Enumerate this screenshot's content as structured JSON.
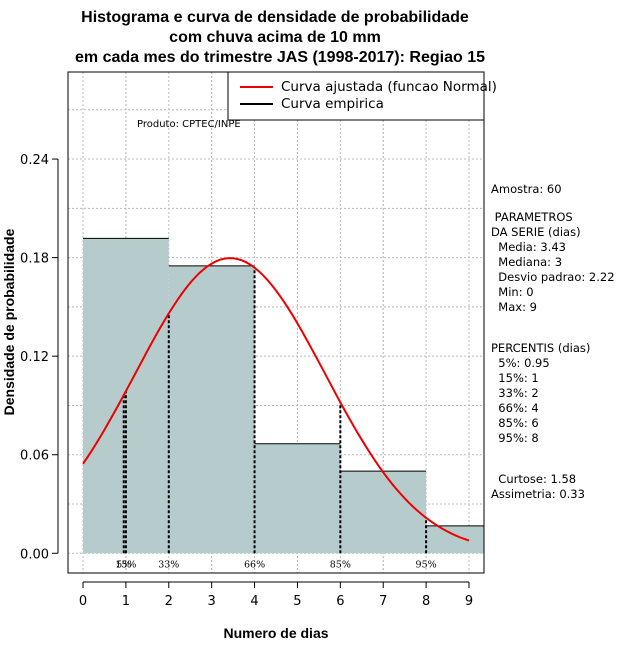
{
  "chart_data": {
    "type": "bar",
    "title": [
      "Histograma e curva de densidade de probabilidade",
      "com chuva acima de 10 mm",
      "em cada mes do trimestre JAS (1998-2017): Regiao 15"
    ],
    "xlabel": "Numero de dias",
    "ylabel": "Densidade de probabilidade",
    "xlim": [
      -0.35,
      9.35
    ],
    "ylim": [
      -0.012,
      0.293
    ],
    "xticks": [
      "0",
      "1",
      "2",
      "3",
      "4",
      "5",
      "6",
      "7",
      "8",
      "9"
    ],
    "yticks": [
      "0.00",
      "0.06",
      "0.12",
      "0.18",
      "0.24"
    ],
    "bins": [
      {
        "start": 0,
        "end": 2,
        "density": 0.1917
      },
      {
        "start": 2,
        "end": 4,
        "density": 0.175
      },
      {
        "start": 4,
        "end": 6,
        "density": 0.0667
      },
      {
        "start": 6,
        "end": 8,
        "density": 0.05
      },
      {
        "start": 8,
        "end": 10,
        "density": 0.0167
      }
    ],
    "fitted_curve": {
      "name": "Curva ajustada (funcao Normal)",
      "mean": 3.43,
      "sd": 2.22,
      "x_range": [
        0,
        9
      ]
    },
    "empirical_curve": {
      "name": "Curva empirica"
    },
    "percentile_markers": [
      {
        "label": "5%",
        "x": 0.95
      },
      {
        "label": "15%",
        "x": 1
      },
      {
        "label": "33%",
        "x": 2
      },
      {
        "label": "66%",
        "x": 4
      },
      {
        "label": "85%",
        "x": 6
      },
      {
        "label": "95%",
        "x": 8
      }
    ],
    "legend_position": "top-right",
    "grid": true,
    "annotation": "Produto: CPTEC/INPE"
  },
  "stats": {
    "amostra": "Amostra: 60",
    "parametros": [
      " PARAMETROS",
      "DA SERIE (dias)",
      "  Media: 3.43",
      "  Mediana: 3",
      "  Desvio padrao: 2.22",
      "  Min: 0",
      "  Max: 9"
    ],
    "percentis": [
      "PERCENTIS (dias)",
      "  5%: 0.95",
      "  15%: 1",
      "  33%: 2",
      "  66%: 4",
      "  85%: 6",
      "  95%: 8"
    ],
    "forma": [
      "  Curtose: 1.58",
      "Assimetria: 0.33"
    ]
  },
  "colors": {
    "bar_fill": "#b6cccc",
    "curve": "#ee0000",
    "grid": "#bbbbbb",
    "text": "#000000"
  }
}
